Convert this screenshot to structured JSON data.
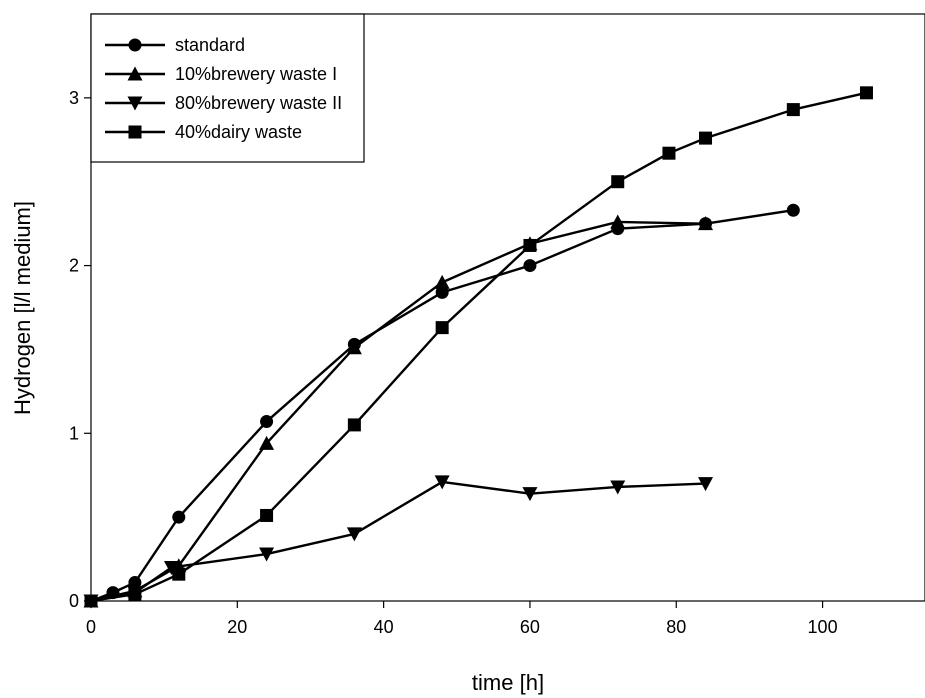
{
  "chart_data": {
    "type": "line",
    "xlabel": "time [h]",
    "ylabel": "Hydrogen [l/l medium]",
    "xlim": [
      0,
      114
    ],
    "ylim": [
      0,
      3.5
    ],
    "xticks": [
      0,
      20,
      40,
      60,
      80,
      100
    ],
    "yticks": [
      0,
      1,
      2,
      3
    ],
    "grid": false,
    "legend_position": "top-left",
    "color": "#000000",
    "series": [
      {
        "name": "standard",
        "marker": "circle",
        "x": [
          0,
          3,
          6,
          12,
          24,
          36,
          48,
          60,
          72,
          84,
          96
        ],
        "y": [
          0,
          0.05,
          0.11,
          0.5,
          1.07,
          1.53,
          1.84,
          2.0,
          2.22,
          2.25,
          2.33
        ]
      },
      {
        "name": "10%brewery waste I",
        "marker": "triangle-up",
        "x": [
          0,
          6,
          12,
          24,
          36,
          48,
          60,
          72,
          84
        ],
        "y": [
          0,
          0.06,
          0.21,
          0.94,
          1.51,
          1.9,
          2.13,
          2.26,
          2.25
        ]
      },
      {
        "name": "80%brewery waste II",
        "marker": "triangle-down",
        "x": [
          0,
          6,
          11,
          24,
          36,
          48,
          60,
          72,
          84
        ],
        "y": [
          0,
          0.05,
          0.2,
          0.28,
          0.4,
          0.71,
          0.64,
          0.68,
          0.7
        ]
      },
      {
        "name": "40%dairy waste",
        "marker": "square",
        "x": [
          0,
          6,
          12,
          24,
          36,
          48,
          60,
          72,
          79,
          84,
          96,
          106
        ],
        "y": [
          0,
          0.04,
          0.16,
          0.51,
          1.05,
          1.63,
          2.12,
          2.5,
          2.67,
          2.76,
          2.93,
          3.03
        ]
      }
    ]
  }
}
